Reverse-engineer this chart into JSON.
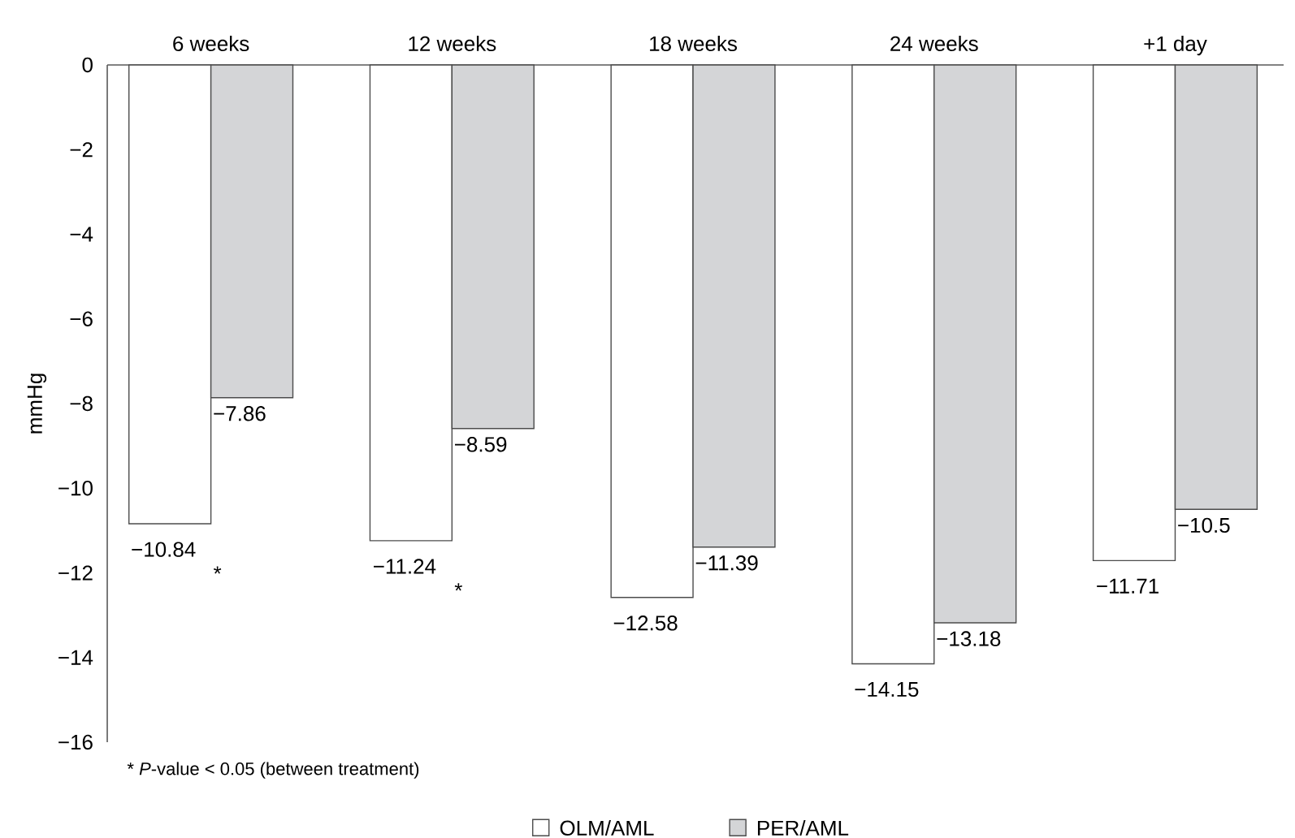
{
  "chart_data": {
    "type": "bar",
    "ylabel": "mmHg",
    "categories": [
      "6 weeks",
      "12 weeks",
      "18 weeks",
      "24 weeks",
      "+1 day"
    ],
    "series": [
      {
        "name": "OLM/AML",
        "color": "#ffffff",
        "values": [
          -10.84,
          -11.24,
          -12.58,
          -14.15,
          -11.71
        ],
        "value_labels": [
          "−10.84",
          "−11.24",
          "−12.58",
          "−14.15",
          "−11.71"
        ]
      },
      {
        "name": "PER/AML",
        "color": "#d4d5d7",
        "values": [
          -7.86,
          -8.59,
          -11.39,
          -13.18,
          -10.5
        ],
        "value_labels": [
          "−7.86",
          "−8.59",
          "−11.39",
          "−13.18",
          "−10.5"
        ]
      }
    ],
    "ylim": [
      -16,
      0
    ],
    "yticks": [
      {
        "value": -16,
        "label": "−16"
      },
      {
        "value": -14,
        "label": "−14"
      },
      {
        "value": -12,
        "label": "−12"
      },
      {
        "value": -10,
        "label": "−10"
      },
      {
        "value": -8,
        "label": "−8"
      },
      {
        "value": -6,
        "label": "−6"
      },
      {
        "value": -4,
        "label": "−4"
      },
      {
        "value": -2,
        "label": "−2"
      },
      0
    ],
    "annotations": [
      "*",
      "*",
      "* *P*-value < 0.05 (between treatment)"
    ],
    "legend": "bottom",
    "grid": false
  }
}
